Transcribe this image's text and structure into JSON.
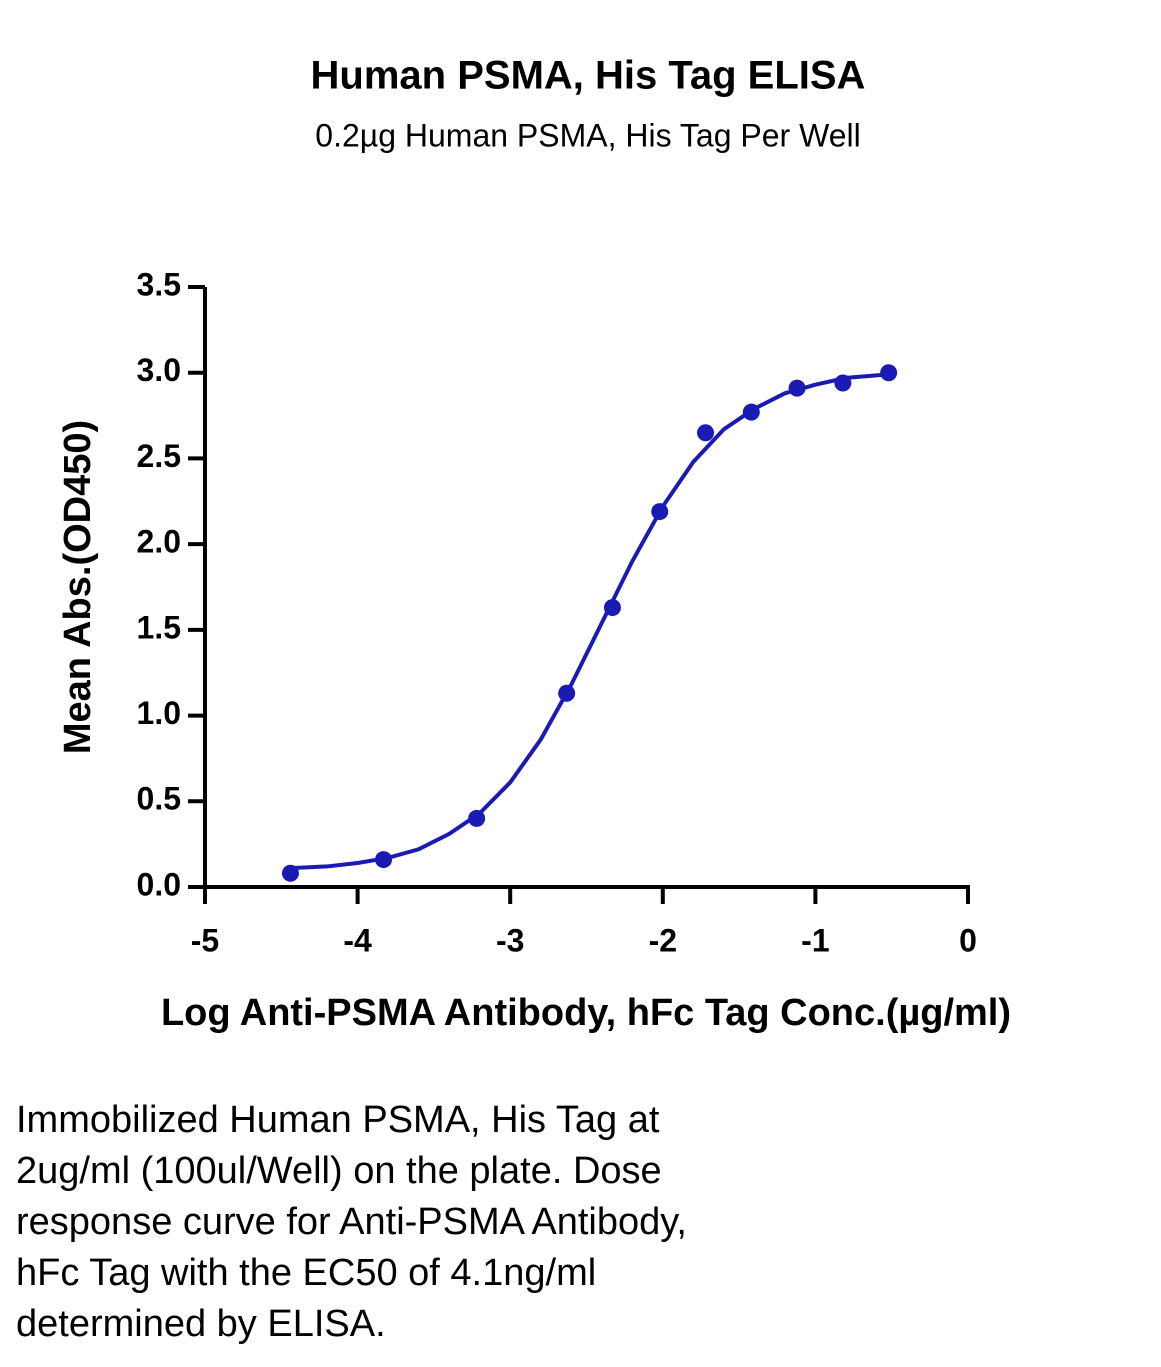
{
  "chart_data": {
    "type": "scatter",
    "title": "Human PSMA, His Tag ELISA",
    "subtitle": "0.2µg Human PSMA, His Tag Per Well",
    "x_label": "Log Anti-PSMA Antibody, hFc Tag Conc.(µg/ml)",
    "y_label": "Mean Abs.(OD450)",
    "color": "#1a1ab4",
    "x": [
      -4.44,
      -3.83,
      -3.22,
      -2.63,
      -2.33,
      -2.02,
      -1.72,
      -1.42,
      -1.12,
      -0.82,
      -0.52
    ],
    "values": [
      0.08,
      0.16,
      0.4,
      1.13,
      1.63,
      2.19,
      2.65,
      2.77,
      2.91,
      2.94,
      3.0
    ],
    "curve": {
      "x": [
        -4.44,
        -4.2,
        -4.0,
        -3.8,
        -3.6,
        -3.4,
        -3.2,
        -3.0,
        -2.8,
        -2.6,
        -2.4,
        -2.2,
        -2.0,
        -1.8,
        -1.6,
        -1.4,
        -1.2,
        -1.0,
        -0.8,
        -0.52
      ],
      "values": [
        0.11,
        0.12,
        0.14,
        0.17,
        0.22,
        0.31,
        0.43,
        0.61,
        0.86,
        1.18,
        1.54,
        1.9,
        2.22,
        2.48,
        2.67,
        2.79,
        2.88,
        2.93,
        2.97,
        2.99
      ]
    },
    "xlim": [
      -5,
      0
    ],
    "xticks": [
      -5,
      -4,
      -3,
      -2,
      -1,
      0
    ],
    "ylim": [
      0,
      3.5
    ],
    "yticks": [
      {
        "value": 0,
        "label": "0.0"
      },
      0.5,
      {
        "value": 1,
        "label": "1.0"
      },
      1.5,
      {
        "value": 2,
        "label": "2.0"
      },
      2.5,
      {
        "value": 3,
        "label": "3.0"
      },
      3.5
    ],
    "grid": false,
    "caption": [
      "Immobilized Human PSMA, His Tag at",
      "2ug/ml (100ul/Well) on the plate. Dose",
      "response curve for Anti-PSMA Antibody,",
      "hFc Tag with the EC50 of 4.1ng/ml",
      "determined by ELISA."
    ]
  }
}
